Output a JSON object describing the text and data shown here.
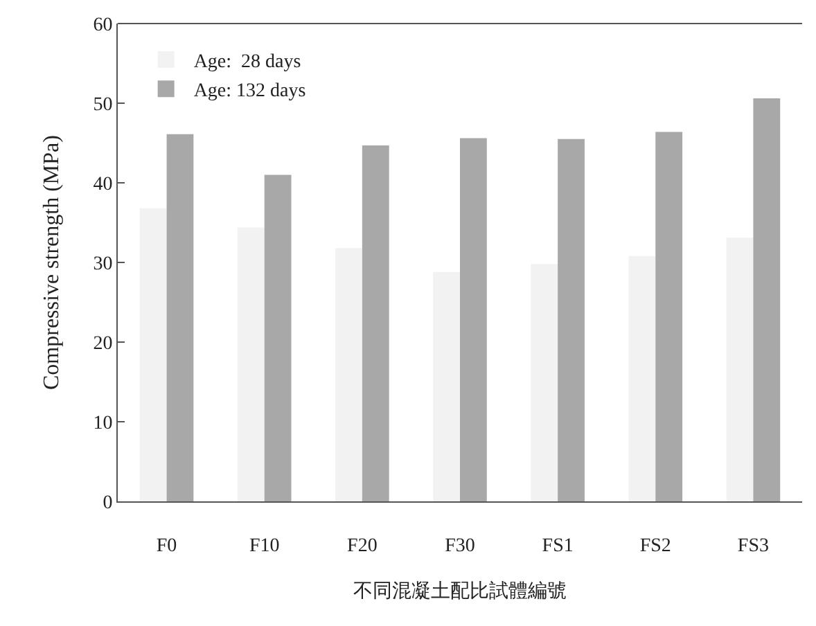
{
  "chart_data": {
    "type": "bar",
    "xlabel": "不同混凝土配比試體編號",
    "ylabel": "Compressive strength (MPa)",
    "categories": [
      "F0",
      "F10",
      "F20",
      "F30",
      "FS1",
      "FS2",
      "FS3"
    ],
    "series": [
      {
        "name": "Age:  28 days",
        "color": "#f2f2f2",
        "values": [
          36.8,
          34.4,
          31.8,
          28.8,
          29.8,
          30.8,
          33.1
        ]
      },
      {
        "name": "Age: 132 days",
        "color": "#a8a8a8",
        "values": [
          46.1,
          41.0,
          44.7,
          45.6,
          45.5,
          46.4,
          50.6
        ]
      }
    ],
    "ylim": [
      0,
      60
    ],
    "yticks": [
      0,
      10,
      20,
      30,
      40,
      50,
      60
    ],
    "grid": false,
    "legend": "top left"
  }
}
